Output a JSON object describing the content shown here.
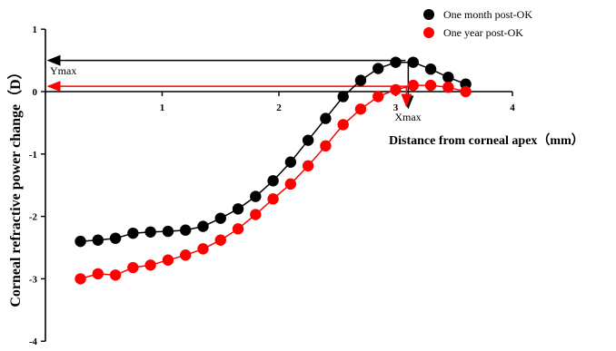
{
  "chart_data": {
    "type": "line",
    "xlabel": "Distance from corneal apex（mm）",
    "ylabel": "Corneal refractive power change（D）",
    "xlim": [
      0,
      4
    ],
    "ylim": [
      -4,
      1
    ],
    "x_ticks": [
      "1",
      "2",
      "3",
      "4"
    ],
    "y_ticks": [
      "1",
      "0",
      "-1",
      "-2",
      "-3",
      "-4"
    ],
    "legend_position": "top-right",
    "series": [
      {
        "name": "One month post-OK",
        "color": "#000000",
        "x": [
          0.3,
          0.45,
          0.6,
          0.75,
          0.9,
          1.05,
          1.2,
          1.35,
          1.5,
          1.65,
          1.8,
          1.95,
          2.1,
          2.25,
          2.4,
          2.55,
          2.7,
          2.85,
          3.0,
          3.15,
          3.3,
          3.45,
          3.6
        ],
        "y": [
          -2.4,
          -2.38,
          -2.35,
          -2.27,
          -2.25,
          -2.24,
          -2.22,
          -2.16,
          -2.03,
          -1.88,
          -1.68,
          -1.43,
          -1.13,
          -0.78,
          -0.43,
          -0.08,
          0.18,
          0.37,
          0.47,
          0.47,
          0.36,
          0.23,
          0.12
        ]
      },
      {
        "name": "One year post-OK",
        "color": "#ff0000",
        "x": [
          0.3,
          0.45,
          0.6,
          0.75,
          0.9,
          1.05,
          1.2,
          1.35,
          1.5,
          1.65,
          1.8,
          1.95,
          2.1,
          2.25,
          2.4,
          2.55,
          2.7,
          2.85,
          3.0,
          3.15,
          3.3,
          3.45,
          3.6
        ],
        "y": [
          -3.0,
          -2.92,
          -2.94,
          -2.82,
          -2.78,
          -2.7,
          -2.62,
          -2.52,
          -2.38,
          -2.2,
          -1.97,
          -1.72,
          -1.48,
          -1.19,
          -0.87,
          -0.53,
          -0.28,
          -0.08,
          0.03,
          0.1,
          0.1,
          0.07,
          0.0
        ]
      }
    ],
    "annotations": {
      "ymax_label": "Ymax",
      "xmax_label": "Xmax"
    }
  }
}
